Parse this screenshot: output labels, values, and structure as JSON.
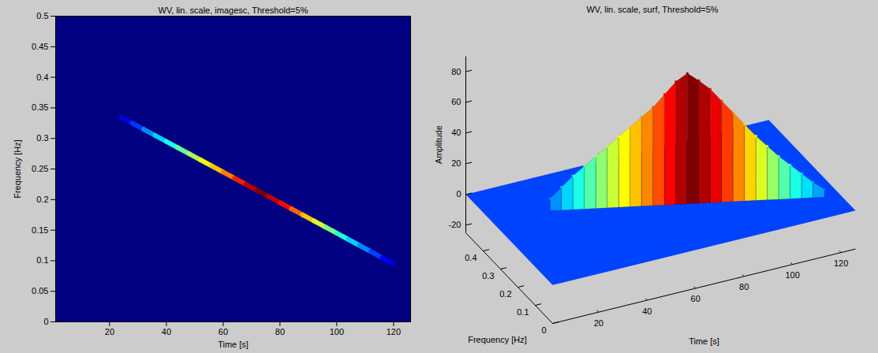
{
  "chart_data": [
    {
      "type": "heatmap",
      "title": "WV, lin. scale, imagesc, Threshold=5%",
      "x_label": "Time [s]",
      "y_label": "Frequency [Hz]",
      "xlim": [
        1,
        126
      ],
      "xticks": [
        20,
        40,
        60,
        80,
        100,
        120
      ],
      "ylim": [
        0,
        0.5
      ],
      "yticks": [
        0,
        0.05,
        0.1,
        0.15,
        0.2,
        0.25,
        0.3,
        0.35,
        0.4,
        0.45,
        0.5
      ],
      "grid": false,
      "color": "jet",
      "color_range": [
        0,
        85
      ],
      "cells": [
        [
          24,
          0.335,
          8
        ],
        [
          28,
          0.325,
          15
        ],
        [
          32,
          0.315,
          22
        ],
        [
          36,
          0.305,
          28
        ],
        [
          40,
          0.295,
          34
        ],
        [
          44,
          0.285,
          40
        ],
        [
          48,
          0.275,
          46
        ],
        [
          52,
          0.265,
          52
        ],
        [
          56,
          0.255,
          58
        ],
        [
          60,
          0.245,
          64
        ],
        [
          64,
          0.235,
          72
        ],
        [
          68,
          0.225,
          80
        ],
        [
          72,
          0.215,
          85
        ],
        [
          76,
          0.205,
          80
        ],
        [
          80,
          0.195,
          74
        ],
        [
          84,
          0.185,
          66
        ],
        [
          88,
          0.175,
          58
        ],
        [
          92,
          0.165,
          50
        ],
        [
          96,
          0.155,
          42
        ],
        [
          100,
          0.145,
          35
        ],
        [
          104,
          0.135,
          28
        ],
        [
          108,
          0.125,
          22
        ],
        [
          112,
          0.115,
          16
        ],
        [
          116,
          0.105,
          10
        ],
        [
          120,
          0.095,
          5
        ]
      ]
    },
    {
      "type": "surface",
      "title": "WV, lin. scale, surf, Threshold=5%",
      "x_label": "Time [s]",
      "y_label": "Frequency [Hz]",
      "z_label": "Amplitude",
      "xlim": [
        1,
        126
      ],
      "xticks": [
        20,
        40,
        60,
        80,
        100,
        120
      ],
      "ylim": [
        0,
        0.5
      ],
      "yticks": [
        0,
        0.1,
        0.2,
        0.3,
        0.4
      ],
      "zlim": [
        -25,
        90
      ],
      "zticks": [
        -20,
        0,
        20,
        40,
        60,
        80
      ],
      "grid": false,
      "color": "jet",
      "color_range": [
        -20,
        85
      ],
      "cells": [
        [
          24,
          0.335,
          8
        ],
        [
          28,
          0.325,
          15
        ],
        [
          32,
          0.315,
          22
        ],
        [
          36,
          0.305,
          28
        ],
        [
          40,
          0.295,
          34
        ],
        [
          44,
          0.285,
          40
        ],
        [
          48,
          0.275,
          46
        ],
        [
          52,
          0.265,
          52
        ],
        [
          56,
          0.255,
          58
        ],
        [
          60,
          0.245,
          64
        ],
        [
          64,
          0.235,
          72
        ],
        [
          68,
          0.225,
          80
        ],
        [
          72,
          0.215,
          85
        ],
        [
          76,
          0.205,
          80
        ],
        [
          80,
          0.195,
          74
        ],
        [
          84,
          0.185,
          66
        ],
        [
          88,
          0.175,
          58
        ],
        [
          92,
          0.165,
          50
        ],
        [
          96,
          0.155,
          42
        ],
        [
          100,
          0.145,
          35
        ],
        [
          104,
          0.135,
          28
        ],
        [
          108,
          0.125,
          22
        ],
        [
          112,
          0.115,
          16
        ],
        [
          116,
          0.105,
          10
        ],
        [
          120,
          0.095,
          5
        ]
      ]
    }
  ]
}
